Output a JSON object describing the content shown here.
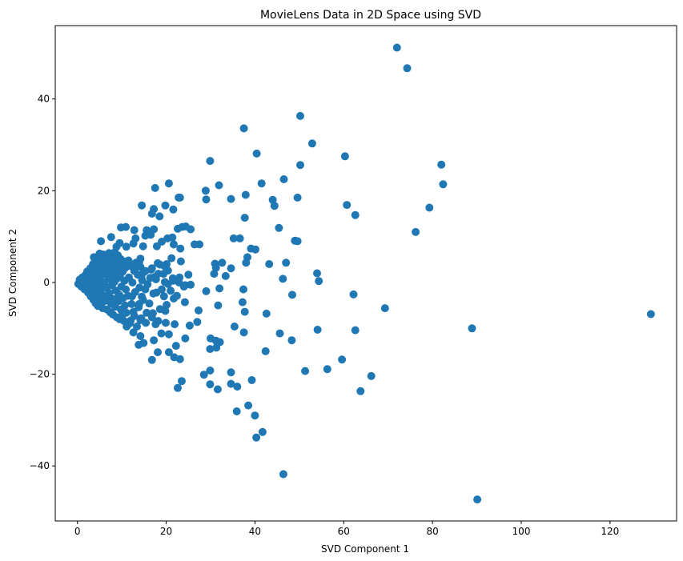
{
  "chart_data": {
    "type": "scatter",
    "title": "MovieLens Data in 2D Space using SVD",
    "xlabel": "SVD Component 1",
    "ylabel": "SVD Component 2",
    "xlim": [
      -5,
      135
    ],
    "ylim": [
      -52,
      56
    ],
    "xticks": [
      0,
      20,
      40,
      60,
      80,
      100,
      120
    ],
    "yticks": [
      -40,
      -20,
      0,
      20,
      40
    ],
    "xtick_labels": [
      "0",
      "20",
      "40",
      "60",
      "80",
      "100",
      "120"
    ],
    "ytick_labels": [
      "−40",
      "−20",
      "0",
      "20",
      "40"
    ],
    "grid": false,
    "marker_color": "#1f77b4",
    "series": [
      {
        "points": [
          [
            72.0,
            51.2
          ],
          [
            74.3,
            46.7
          ],
          [
            50.2,
            36.3
          ],
          [
            37.5,
            33.6
          ],
          [
            52.9,
            30.3
          ],
          [
            40.4,
            28.1
          ],
          [
            60.3,
            27.5
          ],
          [
            29.9,
            26.5
          ],
          [
            82.0,
            25.7
          ],
          [
            50.2,
            25.6
          ],
          [
            46.5,
            22.5
          ],
          [
            82.4,
            21.4
          ],
          [
            41.5,
            21.6
          ],
          [
            20.6,
            21.6
          ],
          [
            31.9,
            21.2
          ],
          [
            17.5,
            20.6
          ],
          [
            28.9,
            20.0
          ],
          [
            37.9,
            19.1
          ],
          [
            22.8,
            18.5
          ],
          [
            23.1,
            18.5
          ],
          [
            29.0,
            18.1
          ],
          [
            34.6,
            18.2
          ],
          [
            44.0,
            18.0
          ],
          [
            49.6,
            18.5
          ],
          [
            14.5,
            16.8
          ],
          [
            19.8,
            16.8
          ],
          [
            44.4,
            16.7
          ],
          [
            60.7,
            16.9
          ],
          [
            79.3,
            16.3
          ],
          [
            17.2,
            16.0
          ],
          [
            21.6,
            15.9
          ],
          [
            16.8,
            15.0
          ],
          [
            62.6,
            14.7
          ],
          [
            18.5,
            14.4
          ],
          [
            37.7,
            14.1
          ],
          [
            23.6,
            12.1
          ],
          [
            24.4,
            12.2
          ],
          [
            25.5,
            11.6
          ],
          [
            45.4,
            11.9
          ],
          [
            10.9,
            12.1
          ],
          [
            12.8,
            11.4
          ],
          [
            15.6,
            11.4
          ],
          [
            17.2,
            11.6
          ],
          [
            22.6,
            11.7
          ],
          [
            76.2,
            11.0
          ],
          [
            15.3,
            10.2
          ],
          [
            16.5,
            10.4
          ],
          [
            7.6,
            9.9
          ],
          [
            13.1,
            9.6
          ],
          [
            20.3,
            9.6
          ],
          [
            21.4,
            9.8
          ],
          [
            35.2,
            9.6
          ],
          [
            36.6,
            9.6
          ],
          [
            49.0,
            9.1
          ],
          [
            49.6,
            9.0
          ],
          [
            5.3,
            9.0
          ],
          [
            9.5,
            8.6
          ],
          [
            12.6,
            8.5
          ],
          [
            19.0,
            8.9
          ],
          [
            21.7,
            8.3
          ],
          [
            26.4,
            8.3
          ],
          [
            27.5,
            8.3
          ],
          [
            8.8,
            7.8
          ],
          [
            11.0,
            7.8
          ],
          [
            14.8,
            7.9
          ],
          [
            17.9,
            7.9
          ],
          [
            23.2,
            7.4
          ],
          [
            39.1,
            7.4
          ],
          [
            40.1,
            7.2
          ],
          [
            38.3,
            5.5
          ],
          [
            14.2,
            5.2
          ],
          [
            21.2,
            5.3
          ],
          [
            23.3,
            4.6
          ],
          [
            31.0,
            4.1
          ],
          [
            32.6,
            4.3
          ],
          [
            38.0,
            4.3
          ],
          [
            43.2,
            4.0
          ],
          [
            47.0,
            4.3
          ],
          [
            31.2,
            3.2
          ],
          [
            34.6,
            3.1
          ],
          [
            30.8,
            1.9
          ],
          [
            33.4,
            1.4
          ],
          [
            54.0,
            2.0
          ],
          [
            46.3,
            0.8
          ],
          [
            54.4,
            0.3
          ],
          [
            24.3,
            -0.6
          ],
          [
            25.5,
            -0.5
          ],
          [
            29.0,
            -1.9
          ],
          [
            32.0,
            -1.3
          ],
          [
            37.4,
            -1.5
          ],
          [
            48.4,
            -2.7
          ],
          [
            62.2,
            -2.6
          ],
          [
            21.7,
            -3.5
          ],
          [
            24.2,
            -4.3
          ],
          [
            31.7,
            -5.0
          ],
          [
            37.2,
            -4.3
          ],
          [
            69.3,
            -5.6
          ],
          [
            27.3,
            -6.1
          ],
          [
            37.7,
            -6.4
          ],
          [
            42.6,
            -6.8
          ],
          [
            27.0,
            -8.6
          ],
          [
            25.3,
            -9.4
          ],
          [
            35.4,
            -9.6
          ],
          [
            54.1,
            -10.3
          ],
          [
            62.6,
            -10.4
          ],
          [
            88.9,
            -10.0
          ],
          [
            129.2,
            -6.9
          ],
          [
            37.5,
            -10.9
          ],
          [
            45.6,
            -11.1
          ],
          [
            30.0,
            -12.2
          ],
          [
            31.2,
            -12.7
          ],
          [
            48.3,
            -12.6
          ],
          [
            32.1,
            -13.0
          ],
          [
            24.3,
            -12.2
          ],
          [
            31.3,
            -14.2
          ],
          [
            29.9,
            -14.5
          ],
          [
            42.4,
            -15.0
          ],
          [
            59.6,
            -16.8
          ],
          [
            56.3,
            -18.9
          ],
          [
            51.3,
            -19.3
          ],
          [
            29.9,
            -19.2
          ],
          [
            34.6,
            -19.6
          ],
          [
            28.5,
            -20.1
          ],
          [
            66.2,
            -20.4
          ],
          [
            39.3,
            -21.3
          ],
          [
            23.5,
            -21.5
          ],
          [
            29.9,
            -22.2
          ],
          [
            34.6,
            -22.1
          ],
          [
            36.0,
            -22.7
          ],
          [
            22.6,
            -23.0
          ],
          [
            31.6,
            -23.3
          ],
          [
            63.8,
            -23.7
          ],
          [
            38.5,
            -26.8
          ],
          [
            35.9,
            -28.1
          ],
          [
            40.0,
            -29.0
          ],
          [
            41.7,
            -32.6
          ],
          [
            40.3,
            -33.8
          ],
          [
            46.4,
            -41.8
          ],
          [
            90.1,
            -47.3
          ],
          [
            9.8,
            12.0
          ],
          [
            5.0,
            6.3
          ],
          [
            5.7,
            6.1
          ],
          [
            6.4,
            5.7
          ],
          [
            3.7,
            5.5
          ],
          [
            4.8,
            5.8
          ],
          [
            8.2,
            5.9
          ],
          [
            11.5,
            4.8
          ],
          [
            13.9,
            4.4
          ],
          [
            18.1,
            4.2
          ],
          [
            20.1,
            4.0
          ],
          [
            19.6,
            3.6
          ],
          [
            16.8,
            3.1
          ],
          [
            15.3,
            2.5
          ],
          [
            12.8,
            2.5
          ],
          [
            18.2,
            1.9
          ],
          [
            16.4,
            1.0
          ],
          [
            14.4,
            1.3
          ],
          [
            17.7,
            0.7
          ],
          [
            19.7,
            0.1
          ],
          [
            20.4,
            -0.3
          ],
          [
            22.9,
            0.0
          ],
          [
            21.5,
            0.9
          ],
          [
            15.3,
            -1.5
          ],
          [
            17.1,
            -2.4
          ],
          [
            19.5,
            -3.0
          ],
          [
            14.5,
            -3.1
          ],
          [
            12.3,
            -3.0
          ],
          [
            13.9,
            -4.7
          ],
          [
            20.1,
            -4.9
          ],
          [
            18.6,
            -5.8
          ],
          [
            15.6,
            -6.6
          ],
          [
            16.8,
            -7.6
          ],
          [
            12.8,
            -7.3
          ],
          [
            14.2,
            -8.2
          ],
          [
            17.6,
            -9.1
          ],
          [
            19.9,
            -8.8
          ],
          [
            21.9,
            -9.1
          ],
          [
            18.9,
            -11.1
          ],
          [
            20.6,
            -11.3
          ],
          [
            14.2,
            -11.7
          ],
          [
            12.6,
            -10.9
          ],
          [
            17.2,
            -12.6
          ],
          [
            14.9,
            -13.2
          ],
          [
            13.8,
            -13.6
          ],
          [
            22.2,
            -13.8
          ],
          [
            18.1,
            -15.2
          ],
          [
            20.6,
            -15.2
          ],
          [
            21.8,
            -16.3
          ],
          [
            23.1,
            -16.7
          ],
          [
            16.8,
            -16.9
          ],
          [
            11.1,
            -9.6
          ],
          [
            12.0,
            -8.3
          ],
          [
            0.2,
            -0.3
          ],
          [
            0.5,
            0.6
          ],
          [
            0.9,
            -0.9
          ],
          [
            1.1,
            1.1
          ],
          [
            1.3,
            0.0
          ],
          [
            1.6,
            -1.5
          ],
          [
            1.8,
            1.6
          ],
          [
            2.0,
            -0.6
          ],
          [
            2.2,
            2.4
          ],
          [
            2.4,
            -2.2
          ],
          [
            2.5,
            0.8
          ],
          [
            2.7,
            -1.1
          ],
          [
            2.9,
            3.1
          ],
          [
            3.0,
            -3.0
          ],
          [
            3.2,
            1.6
          ],
          [
            3.3,
            -0.2
          ],
          [
            3.5,
            4.0
          ],
          [
            3.6,
            -3.8
          ],
          [
            3.8,
            2.2
          ],
          [
            3.9,
            -1.7
          ],
          [
            4.0,
            4.6
          ],
          [
            4.1,
            -4.5
          ],
          [
            4.2,
            0.5
          ],
          [
            4.3,
            3.2
          ],
          [
            4.4,
            -2.6
          ],
          [
            4.5,
            5.2
          ],
          [
            4.6,
            -5.1
          ],
          [
            4.7,
            1.4
          ],
          [
            4.8,
            -0.8
          ],
          [
            4.9,
            3.9
          ],
          [
            5.0,
            -3.5
          ],
          [
            5.1,
            5.6
          ],
          [
            5.2,
            -1.9
          ],
          [
            5.3,
            2.6
          ],
          [
            5.4,
            -4.4
          ],
          [
            5.5,
            0.2
          ],
          [
            5.6,
            4.7
          ],
          [
            5.7,
            -5.6
          ],
          [
            5.8,
            1.8
          ],
          [
            5.9,
            -2.9
          ],
          [
            6.0,
            5.3
          ],
          [
            6.1,
            -0.3
          ],
          [
            6.2,
            3.3
          ],
          [
            6.3,
            -4.0
          ],
          [
            6.4,
            6.0
          ],
          [
            6.5,
            -1.2
          ],
          [
            6.6,
            2.1
          ],
          [
            6.7,
            -5.9
          ],
          [
            6.8,
            4.4
          ],
          [
            6.9,
            -3.2
          ],
          [
            7.0,
            0.8
          ],
          [
            7.1,
            6.4
          ],
          [
            7.2,
            -2.3
          ],
          [
            7.3,
            3.5
          ],
          [
            7.4,
            -6.5
          ],
          [
            7.5,
            1.3
          ],
          [
            7.6,
            -4.6
          ],
          [
            7.7,
            5.4
          ],
          [
            7.8,
            -0.6
          ],
          [
            7.9,
            2.9
          ],
          [
            8.0,
            -7.0
          ],
          [
            8.1,
            4.9
          ],
          [
            8.2,
            -3.6
          ],
          [
            8.3,
            0.1
          ],
          [
            8.4,
            6.6
          ],
          [
            8.5,
            -5.3
          ],
          [
            8.6,
            2.2
          ],
          [
            8.7,
            -1.8
          ],
          [
            8.8,
            4.2
          ],
          [
            8.9,
            -7.6
          ],
          [
            9.0,
            0.9
          ],
          [
            9.1,
            5.9
          ],
          [
            9.2,
            -4.1
          ],
          [
            9.3,
            3.0
          ],
          [
            9.4,
            -2.7
          ],
          [
            9.5,
            -8.0
          ],
          [
            9.6,
            1.6
          ],
          [
            9.7,
            5.1
          ],
          [
            9.8,
            -5.9
          ],
          [
            9.9,
            -0.9
          ],
          [
            10.0,
            3.7
          ],
          [
            10.1,
            -7.1
          ],
          [
            10.2,
            2.4
          ],
          [
            10.3,
            -3.4
          ],
          [
            10.4,
            4.6
          ],
          [
            10.5,
            -8.4
          ],
          [
            10.6,
            0.4
          ],
          [
            10.7,
            -5.0
          ],
          [
            10.8,
            3.2
          ],
          [
            10.9,
            -1.5
          ],
          [
            11.0,
            -6.6
          ],
          [
            11.2,
            4.1
          ],
          [
            11.4,
            -2.9
          ],
          [
            11.6,
            1.1
          ],
          [
            11.8,
            -8.9
          ],
          [
            12.0,
            3.6
          ],
          [
            12.2,
            -4.7
          ],
          [
            12.4,
            0.0
          ],
          [
            12.6,
            -6.4
          ],
          [
            12.8,
            2.7
          ],
          [
            13.0,
            -2.1
          ],
          [
            13.2,
            4.3
          ],
          [
            13.4,
            -9.6
          ],
          [
            13.6,
            1.7
          ],
          [
            13.8,
            -5.4
          ],
          [
            14.0,
            -1.1
          ],
          [
            14.2,
            3.4
          ],
          [
            14.4,
            -7.8
          ],
          [
            14.6,
            0.5
          ],
          [
            14.8,
            -3.8
          ],
          [
            15.0,
            2.3
          ],
          [
            15.4,
            -8.8
          ],
          [
            15.8,
            -0.4
          ],
          [
            16.2,
            -4.6
          ],
          [
            16.6,
            2.8
          ],
          [
            17.0,
            -6.7
          ],
          [
            17.4,
            1.2
          ],
          [
            17.8,
            -2.2
          ],
          [
            18.2,
            -8.4
          ],
          [
            18.6,
            3.9
          ],
          [
            19.0,
            -1.5
          ],
          [
            19.4,
            1.9
          ],
          [
            19.8,
            -6.2
          ],
          [
            20.4,
            2.6
          ],
          [
            21.0,
            -1.8
          ],
          [
            21.6,
            0.4
          ],
          [
            22.4,
            -2.9
          ],
          [
            23.0,
            1.1
          ],
          [
            24.0,
            -0.9
          ],
          [
            25.0,
            1.7
          ]
        ]
      }
    ]
  }
}
